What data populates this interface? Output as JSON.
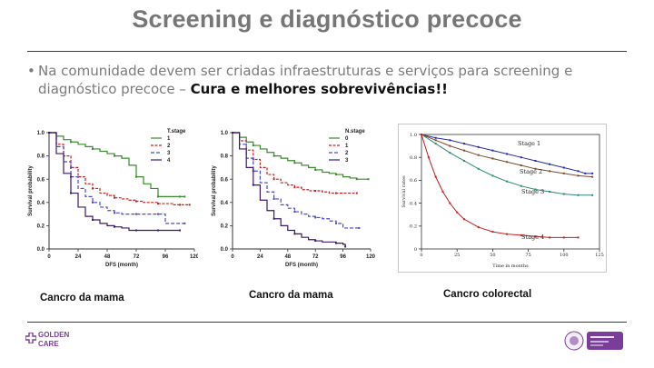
{
  "slide": {
    "title": "Screening e diagnóstico precoce",
    "bullet_prefix": "Na comunidade devem ser criadas infraestruturas e serviços para screening e diagnóstico precoce – ",
    "bullet_bold": "Cura e melhores sobrevivências!!",
    "captions": [
      "Cancro da mama",
      "Cancro da mama",
      "Cancro colorectal"
    ]
  },
  "logos": {
    "left": {
      "line1": "GOLDEN",
      "line2": "CARE"
    }
  },
  "colors": {
    "title": "#767676",
    "accent_purple": "#7a3e9a"
  },
  "chart_data": [
    {
      "type": "line",
      "title": "",
      "xlabel": "DFS (month)",
      "ylabel": "Survival probability",
      "legend_title": "T.stage",
      "legend_position": "top-right",
      "xlim": [
        0,
        120
      ],
      "ylim": [
        0,
        1.0
      ],
      "xticks": [
        "0",
        "24",
        "48",
        "72",
        "96",
        "120"
      ],
      "yticks": [
        "0.0",
        "0.2",
        "0.4",
        "0.6",
        "0.8",
        "1.0"
      ],
      "series": [
        {
          "name": "1",
          "color": "#3a8a2e",
          "x": [
            0,
            6,
            12,
            18,
            24,
            30,
            36,
            42,
            48,
            54,
            60,
            66,
            72,
            78,
            84,
            90,
            96,
            102,
            108,
            112
          ],
          "y": [
            1.0,
            0.97,
            0.94,
            0.92,
            0.9,
            0.88,
            0.86,
            0.84,
            0.82,
            0.8,
            0.78,
            0.72,
            0.62,
            0.56,
            0.52,
            0.45,
            0.45,
            0.45,
            0.45,
            0.45
          ]
        },
        {
          "name": "2",
          "color": "#c62020",
          "x": [
            0,
            6,
            12,
            18,
            24,
            30,
            36,
            42,
            48,
            54,
            60,
            66,
            72,
            78,
            84,
            90,
            96,
            102,
            108,
            116
          ],
          "y": [
            1.0,
            0.9,
            0.8,
            0.7,
            0.62,
            0.56,
            0.52,
            0.48,
            0.46,
            0.44,
            0.43,
            0.42,
            0.41,
            0.4,
            0.4,
            0.39,
            0.39,
            0.38,
            0.38,
            0.38
          ]
        },
        {
          "name": "3",
          "color": "#4a4ad0",
          "x": [
            0,
            6,
            12,
            18,
            24,
            30,
            36,
            42,
            48,
            54,
            60,
            66,
            72,
            78,
            84,
            90,
            96,
            102,
            112
          ],
          "y": [
            1.0,
            0.88,
            0.75,
            0.62,
            0.52,
            0.45,
            0.4,
            0.36,
            0.33,
            0.31,
            0.3,
            0.3,
            0.3,
            0.3,
            0.3,
            0.3,
            0.22,
            0.22,
            0.22
          ]
        },
        {
          "name": "4",
          "color": "#3b1a6e",
          "x": [
            0,
            6,
            12,
            18,
            24,
            30,
            36,
            42,
            48,
            54,
            60,
            66,
            72,
            78,
            84,
            90,
            96,
            108
          ],
          "y": [
            1.0,
            0.82,
            0.65,
            0.48,
            0.36,
            0.28,
            0.25,
            0.22,
            0.2,
            0.19,
            0.18,
            0.16,
            0.16,
            0.16,
            0.16,
            0.16,
            0.16,
            0.16
          ]
        }
      ]
    },
    {
      "type": "line",
      "title": "",
      "xlabel": "DFS (month)",
      "ylabel": "Survival probability",
      "legend_title": "N.stage",
      "legend_position": "top-right",
      "xlim": [
        0,
        120
      ],
      "ylim": [
        0,
        1.0
      ],
      "xticks": [
        "0",
        "24",
        "48",
        "72",
        "96",
        "120"
      ],
      "yticks": [
        "0.0",
        "0.2",
        "0.4",
        "0.6",
        "0.8",
        "1.0"
      ],
      "series": [
        {
          "name": "0",
          "color": "#3a8a2e",
          "x": [
            0,
            6,
            12,
            18,
            24,
            30,
            36,
            42,
            48,
            54,
            60,
            66,
            72,
            78,
            84,
            90,
            96,
            102,
            108,
            118
          ],
          "y": [
            1.0,
            0.96,
            0.92,
            0.89,
            0.86,
            0.83,
            0.8,
            0.78,
            0.76,
            0.74,
            0.72,
            0.7,
            0.68,
            0.66,
            0.65,
            0.64,
            0.62,
            0.61,
            0.6,
            0.6
          ]
        },
        {
          "name": "1",
          "color": "#c62020",
          "x": [
            0,
            6,
            12,
            18,
            24,
            30,
            36,
            42,
            48,
            54,
            60,
            66,
            72,
            78,
            84,
            90,
            96,
            102,
            108
          ],
          "y": [
            1.0,
            0.93,
            0.85,
            0.77,
            0.7,
            0.64,
            0.6,
            0.57,
            0.55,
            0.53,
            0.51,
            0.5,
            0.5,
            0.49,
            0.48,
            0.48,
            0.48,
            0.48,
            0.48
          ]
        },
        {
          "name": "2",
          "color": "#4a4ad0",
          "x": [
            0,
            6,
            12,
            18,
            24,
            30,
            36,
            42,
            48,
            54,
            60,
            66,
            72,
            78,
            84,
            90,
            96,
            100,
            110
          ],
          "y": [
            1.0,
            0.9,
            0.78,
            0.67,
            0.57,
            0.49,
            0.43,
            0.38,
            0.35,
            0.32,
            0.3,
            0.28,
            0.27,
            0.26,
            0.24,
            0.22,
            0.18,
            0.18,
            0.18
          ]
        },
        {
          "name": "3",
          "color": "#3b1a6e",
          "x": [
            0,
            6,
            12,
            18,
            24,
            30,
            36,
            42,
            48,
            54,
            60,
            66,
            72,
            78,
            84,
            90,
            96,
            98
          ],
          "y": [
            1.0,
            0.86,
            0.7,
            0.55,
            0.42,
            0.33,
            0.26,
            0.2,
            0.16,
            0.13,
            0.1,
            0.08,
            0.07,
            0.06,
            0.06,
            0.05,
            0.04,
            0.02
          ]
        }
      ]
    },
    {
      "type": "line",
      "title": "",
      "xlabel": "Time in months",
      "ylabel": "Survival rates",
      "xlim": [
        0,
        125
      ],
      "ylim": [
        0,
        1.0
      ],
      "xticks": [
        "0",
        "25",
        "50",
        "75",
        "100",
        "125"
      ],
      "yticks": [
        "0",
        "0.2",
        "0.4",
        "0.6",
        "0.8",
        "1.0"
      ],
      "series": [
        {
          "name": "Stage 1",
          "color": "#2a2aa8",
          "x": [
            0,
            10,
            20,
            30,
            40,
            50,
            60,
            70,
            80,
            90,
            100,
            110,
            115,
            120
          ],
          "y": [
            1.0,
            0.97,
            0.95,
            0.92,
            0.89,
            0.86,
            0.83,
            0.8,
            0.77,
            0.74,
            0.71,
            0.68,
            0.66,
            0.66
          ]
        },
        {
          "name": "Stage 2",
          "color": "#7a4a2a",
          "x": [
            0,
            10,
            20,
            30,
            40,
            50,
            60,
            70,
            80,
            90,
            100,
            110,
            120
          ],
          "y": [
            1.0,
            0.95,
            0.9,
            0.86,
            0.82,
            0.79,
            0.76,
            0.73,
            0.7,
            0.68,
            0.66,
            0.64,
            0.63
          ]
        },
        {
          "name": "Stage 3",
          "color": "#2e8a7a",
          "x": [
            0,
            10,
            20,
            30,
            40,
            50,
            60,
            70,
            80,
            90,
            100,
            110,
            120
          ],
          "y": [
            1.0,
            0.92,
            0.84,
            0.77,
            0.7,
            0.64,
            0.59,
            0.55,
            0.52,
            0.5,
            0.48,
            0.47,
            0.47
          ]
        },
        {
          "name": "Stage 4",
          "color": "#c62020",
          "x": [
            0,
            5,
            10,
            15,
            20,
            25,
            30,
            40,
            50,
            60,
            70,
            80,
            90,
            100,
            110
          ],
          "y": [
            1.0,
            0.8,
            0.63,
            0.5,
            0.4,
            0.32,
            0.26,
            0.19,
            0.15,
            0.13,
            0.12,
            0.11,
            0.1,
            0.1,
            0.1
          ]
        }
      ]
    }
  ]
}
